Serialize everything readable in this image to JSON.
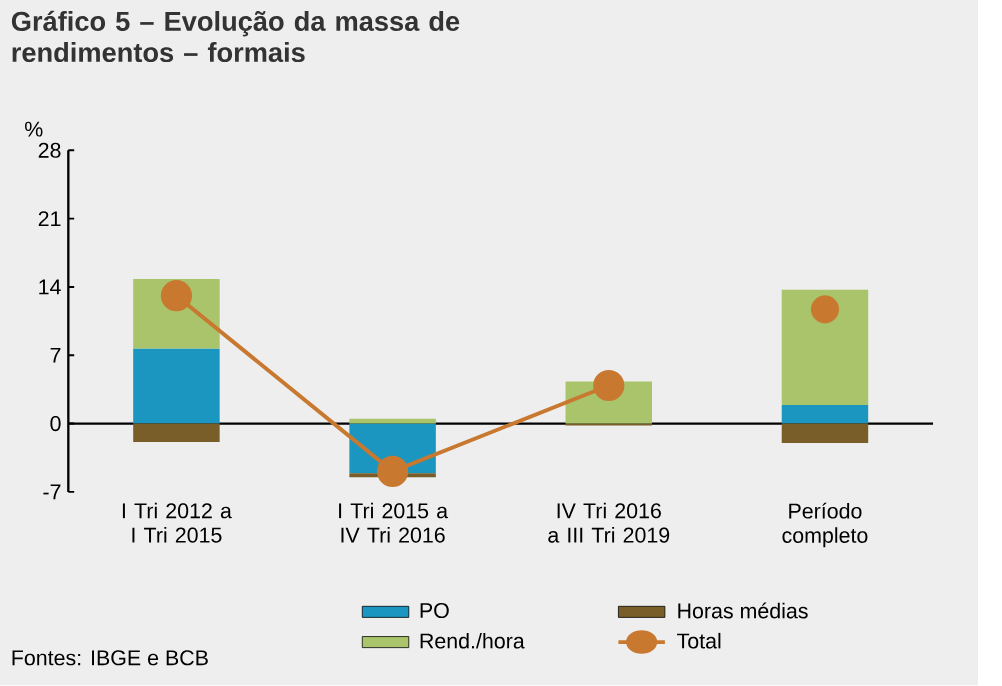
{
  "chart_data": {
    "type": "bar",
    "stacked": true,
    "title": "Gráfico 5 – Evolução da massa de rendimentos – formais",
    "ylabel": "%",
    "categories": [
      "I Tri 2012 a I Tri 2015",
      "I Tri 2015 a IV Tri 2016",
      "IV Tri 2016 a III Tri 2019",
      "Período completo"
    ],
    "series": [
      {
        "name": "PO",
        "color": "#1a96c0",
        "values": [
          7.7,
          -5.1,
          0,
          1.9
        ]
      },
      {
        "name": "Horas médias",
        "color": "#7a5e2a",
        "values": [
          -1.9,
          -0.4,
          -0.2,
          -2.0
        ]
      },
      {
        "name": "Rend./hora",
        "color": "#a9c46a",
        "values": [
          7.1,
          0.5,
          4.3,
          11.8
        ]
      },
      {
        "name": "Total",
        "type": "line",
        "color": "#c8782f",
        "marker": "circle",
        "values": [
          13.1,
          -4.9,
          3.9,
          null
        ]
      },
      {
        "type": "scatter",
        "color": "#c8782f",
        "marker": "circle",
        "values": [
          null,
          null,
          null,
          11.7
        ]
      }
    ],
    "ylim": [
      -7,
      28
    ],
    "yticks": [
      -7,
      0,
      7,
      14,
      21,
      28
    ],
    "legend": "bottom",
    "annotations": [
      "Fontes: IBGE e BCB"
    ]
  }
}
